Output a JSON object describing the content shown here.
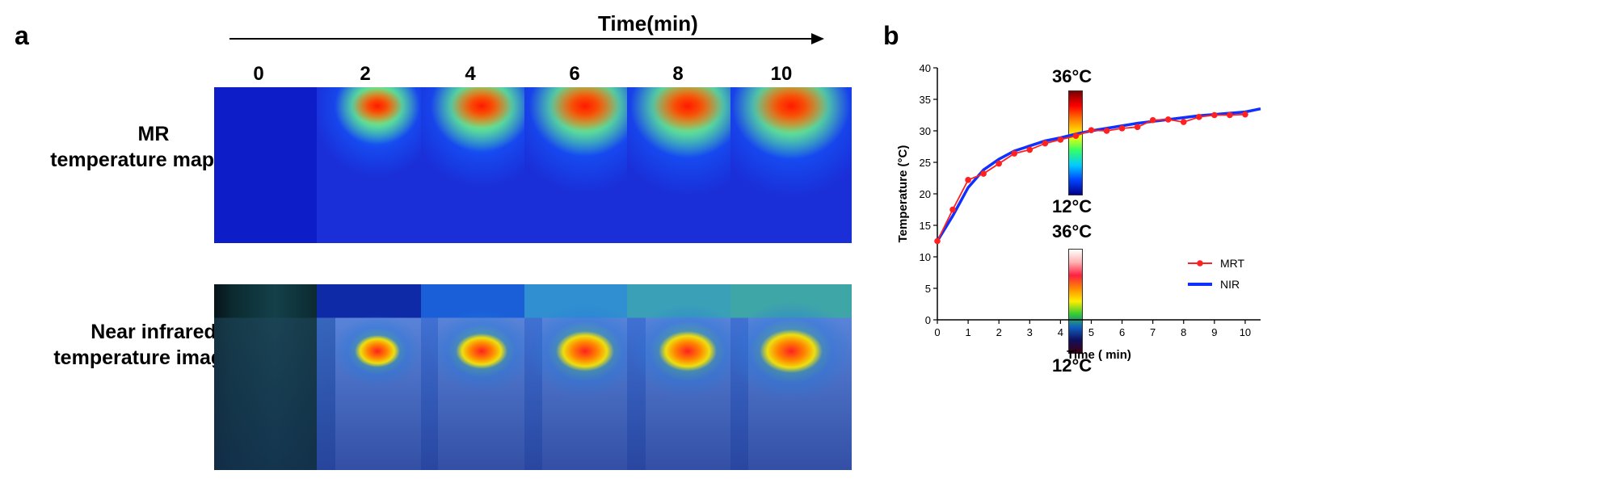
{
  "panel_a": {
    "label": "a",
    "time_title": "Time(min)",
    "time_labels": [
      "0",
      "2",
      "4",
      "6",
      "8",
      "10"
    ],
    "rows": [
      {
        "line1": "MR",
        "line2": "temperature mapping"
      },
      {
        "line1": "Near infrared",
        "line2": "temperature imaging"
      }
    ],
    "colorbar_top": "36°C",
    "colorbar_bottom": "12°C",
    "colorbar_top_2": "36°C",
    "colorbar_bottom_2": "12°C",
    "mr_hotspot_intensity": [
      0,
      0.45,
      0.7,
      0.85,
      0.9,
      0.95
    ],
    "nir_hotspot_intensity": [
      0,
      0.55,
      0.7,
      0.85,
      0.85,
      0.95
    ]
  },
  "panel_b": {
    "label": "b"
  },
  "chart_data": {
    "type": "line",
    "xlabel": "Time ( min)",
    "ylabel": "Temperature (°C)",
    "xlim": [
      0,
      10.5
    ],
    "ylim": [
      0,
      40
    ],
    "xticks": [
      0,
      1,
      2,
      3,
      4,
      5,
      6,
      7,
      8,
      9,
      10
    ],
    "yticks": [
      0,
      5,
      10,
      15,
      20,
      25,
      30,
      35,
      40
    ],
    "legend_position": "bottom-right",
    "series": [
      {
        "name": "MRT",
        "color": "#ff2020",
        "marker": "circle",
        "x": [
          0,
          0.5,
          1,
          1.5,
          2,
          2.5,
          3,
          3.5,
          4,
          4.5,
          5,
          5.5,
          6,
          6.5,
          7,
          7.5,
          8,
          8.5,
          9,
          9.5,
          10
        ],
        "y": [
          12.5,
          17.5,
          22.2,
          23.2,
          24.8,
          26.4,
          27.0,
          28.0,
          28.6,
          29.2,
          30.1,
          30.0,
          30.4,
          30.6,
          31.7,
          31.8,
          31.4,
          32.2,
          32.5,
          32.5,
          32.6
        ]
      },
      {
        "name": "NIR",
        "color": "#1030ff",
        "marker": "none",
        "x": [
          0,
          0.5,
          1,
          1.5,
          2,
          2.5,
          3,
          3.5,
          4,
          4.5,
          5,
          5.5,
          6,
          6.5,
          7,
          7.5,
          8,
          8.5,
          9,
          9.5,
          10,
          10.5
        ],
        "y": [
          12.5,
          16.5,
          21.0,
          23.8,
          25.5,
          26.8,
          27.6,
          28.4,
          28.9,
          29.5,
          30.0,
          30.4,
          30.8,
          31.2,
          31.5,
          31.8,
          32.1,
          32.4,
          32.6,
          32.8,
          33.0,
          33.5
        ]
      }
    ]
  }
}
